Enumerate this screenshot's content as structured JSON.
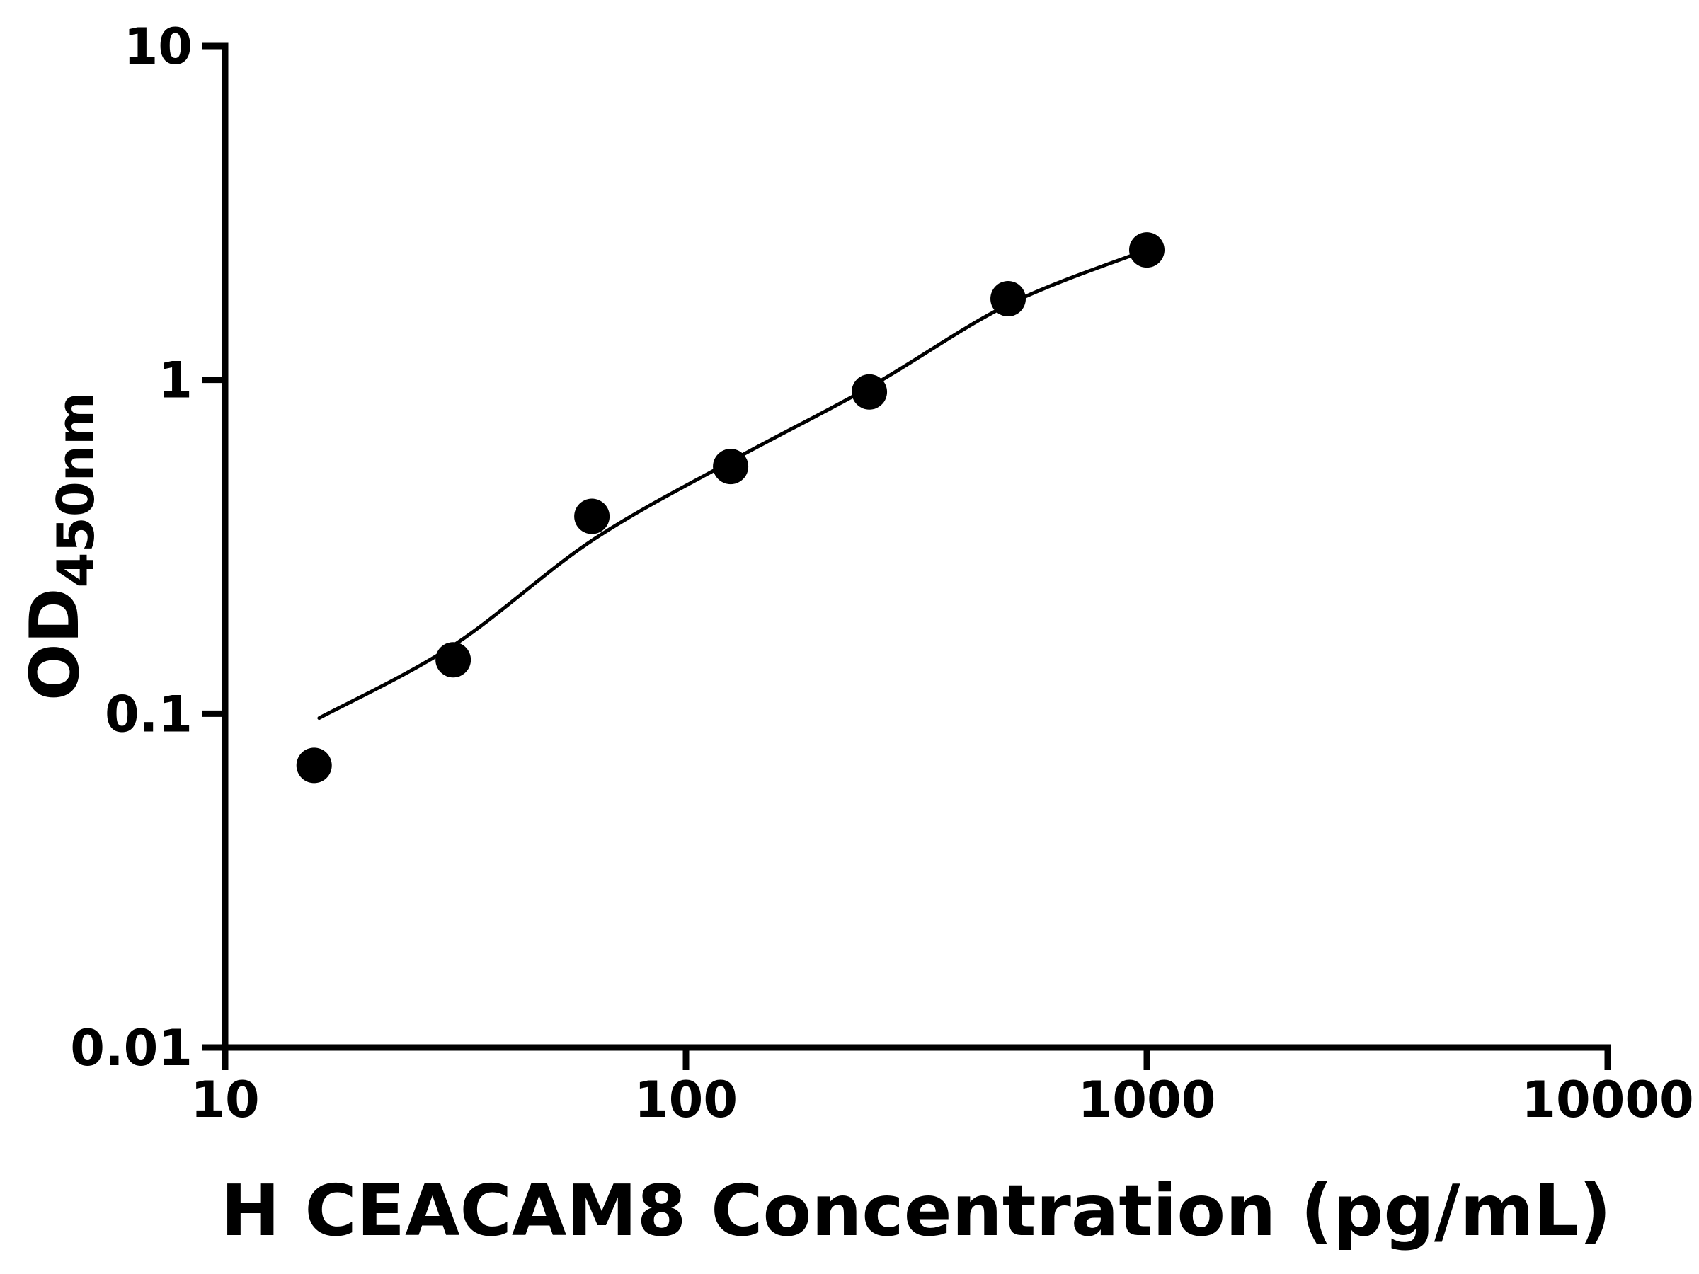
{
  "chart_data": {
    "type": "scatter",
    "title": "",
    "xlabel": "H CEACAM8 Concentration (pg/mL)",
    "ylabel_main": "OD",
    "ylabel_sub": "450nm",
    "x_scale": "log",
    "y_scale": "log",
    "xlim": [
      10,
      10000
    ],
    "ylim": [
      0.01,
      10
    ],
    "grid": false,
    "legend_position": "none",
    "x_ticks": [
      {
        "value": 10,
        "label": "10"
      },
      {
        "value": 100,
        "label": "100"
      },
      {
        "value": 1000,
        "label": "1000"
      },
      {
        "value": 10000,
        "label": "10000"
      }
    ],
    "y_ticks": [
      {
        "value": 0.01,
        "label": "0.01"
      },
      {
        "value": 0.1,
        "label": "0.1"
      },
      {
        "value": 1,
        "label": "1"
      },
      {
        "value": 10,
        "label": "10"
      }
    ],
    "series": [
      {
        "name": "fit-curve",
        "type": "line",
        "color": "#000000",
        "stroke_width_px": 5,
        "points": [
          {
            "x": 16,
            "y": 0.097
          },
          {
            "x": 31.25,
            "y": 0.16
          },
          {
            "x": 62.5,
            "y": 0.33
          },
          {
            "x": 125,
            "y": 0.57
          },
          {
            "x": 250,
            "y": 0.95
          },
          {
            "x": 500,
            "y": 1.68
          },
          {
            "x": 1000,
            "y": 2.45
          }
        ]
      },
      {
        "name": "standard-points",
        "type": "scatter",
        "marker": "circle",
        "marker_radius_px": 25,
        "color": "#000000",
        "points": [
          {
            "x": 15.6,
            "y": 0.07
          },
          {
            "x": 31.25,
            "y": 0.145
          },
          {
            "x": 62.5,
            "y": 0.39
          },
          {
            "x": 125,
            "y": 0.55
          },
          {
            "x": 250,
            "y": 0.92
          },
          {
            "x": 500,
            "y": 1.75
          },
          {
            "x": 1000,
            "y": 2.45
          }
        ]
      }
    ],
    "colors": {
      "axis": "#000000",
      "marker": "#000000",
      "curve": "#000000",
      "background": "#ffffff"
    }
  }
}
